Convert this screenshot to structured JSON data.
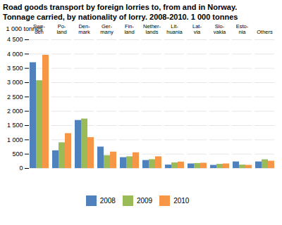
{
  "chart_data": {
    "type": "bar",
    "title": "Road goods transport by foreign lorries to, from and in Norway.",
    "subtitle": "Tonnage carried, by nationality of lorry. 2008-2010. 1 000 tonnes",
    "ylabel": "1 000 tonnes",
    "categories": [
      "Swe-\nden",
      "Po-\nland",
      "Den-\nmark",
      "Ger-\nmany",
      "Fin-\nland",
      "Nether-\nlands",
      "Lit-\nhuania",
      "Lat-\nvia",
      "Slo-\nvakia",
      "Esto-\nnia",
      "Others"
    ],
    "series": [
      {
        "name": "2008",
        "color": "#4f81bd",
        "values": [
          3700,
          620,
          1680,
          750,
          380,
          280,
          120,
          160,
          110,
          230,
          230
        ]
      },
      {
        "name": "2009",
        "color": "#9bbb59",
        "values": [
          3070,
          900,
          1730,
          450,
          410,
          310,
          195,
          175,
          145,
          120,
          305
        ]
      },
      {
        "name": "2010",
        "color": "#f79646",
        "values": [
          3960,
          1220,
          1080,
          575,
          550,
          410,
          225,
          185,
          160,
          110,
          255
        ]
      }
    ],
    "ylim": [
      0,
      4500
    ],
    "yticks": [
      0,
      500,
      {
        "value": 1000,
        "label": "1 000"
      },
      {
        "value": 1500,
        "label": "1 500"
      },
      {
        "value": 2000,
        "label": "2 000"
      },
      {
        "value": 2500,
        "label": "2 500"
      },
      {
        "value": 3000,
        "label": "3 000"
      },
      {
        "value": 3500,
        "label": "3 500"
      },
      {
        "value": 4000,
        "label": "4 000"
      },
      {
        "value": 4500,
        "label": "4 500"
      }
    ],
    "grid": true,
    "legend": "bottom"
  }
}
